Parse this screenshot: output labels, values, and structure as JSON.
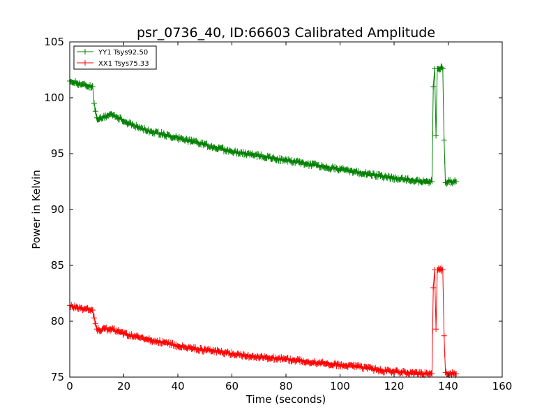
{
  "chart_data": {
    "type": "line",
    "title": "psr_0736_40, ID:66603 Calibrated Amplitude",
    "xlabel": "Time (seconds)",
    "ylabel": "Power in Kelvin",
    "xlim": [
      0,
      160
    ],
    "ylim": [
      75,
      105
    ],
    "xticks": [
      "0",
      "20",
      "40",
      "60",
      "80",
      "100",
      "120",
      "140",
      "160"
    ],
    "yticks": [
      "75",
      "80",
      "85",
      "90",
      "95",
      "100",
      "105"
    ],
    "grid": false,
    "legend_position": "top-left",
    "series": [
      {
        "name": "YY1 Tsys92.50",
        "color": "#008000",
        "x": [
          0,
          3,
          6,
          8.5,
          9,
          9.5,
          10,
          11,
          13,
          15,
          18,
          20,
          25,
          30,
          35,
          40,
          45,
          50,
          55,
          60,
          65,
          70,
          75,
          80,
          85,
          90,
          95,
          100,
          105,
          110,
          115,
          120,
          125,
          130,
          133,
          134,
          134.5,
          135,
          135.5,
          136,
          137,
          137.5,
          138,
          138.5,
          139,
          140,
          143
        ],
        "y": [
          101.5,
          101.3,
          101.1,
          101.0,
          99.5,
          98.8,
          98.2,
          98.1,
          98.3,
          98.5,
          98.2,
          97.9,
          97.4,
          97.0,
          96.7,
          96.4,
          96.1,
          95.8,
          95.5,
          95.2,
          95.0,
          94.8,
          94.6,
          94.4,
          94.2,
          94.0,
          93.8,
          93.6,
          93.4,
          93.2,
          93.0,
          92.8,
          92.7,
          92.5,
          92.5,
          92.5,
          101.0,
          102.6,
          96.6,
          102.6,
          102.6,
          102.7,
          102.6,
          96.2,
          92.4,
          92.5,
          92.5
        ]
      },
      {
        "name": "XX1 Tsys75.33",
        "color": "#ff0000",
        "x": [
          0,
          3,
          6,
          8.5,
          9,
          9.5,
          10,
          11,
          13,
          15,
          18,
          20,
          25,
          30,
          35,
          40,
          45,
          50,
          55,
          60,
          65,
          70,
          75,
          80,
          85,
          90,
          95,
          100,
          105,
          110,
          115,
          120,
          125,
          130,
          133,
          134,
          134.5,
          135,
          135.5,
          136,
          137,
          137.5,
          138,
          138.5,
          139,
          140,
          143
        ],
        "y": [
          81.4,
          81.2,
          81.1,
          81.0,
          80.3,
          79.8,
          79.3,
          79.2,
          79.3,
          79.3,
          79.1,
          78.9,
          78.6,
          78.3,
          78.1,
          77.8,
          77.6,
          77.4,
          77.3,
          77.1,
          76.9,
          76.8,
          76.7,
          76.6,
          76.5,
          76.3,
          76.2,
          76.1,
          76.0,
          75.8,
          75.6,
          75.5,
          75.4,
          75.3,
          75.3,
          75.3,
          83.0,
          84.6,
          79.3,
          84.6,
          84.6,
          84.6,
          84.6,
          78.7,
          75.4,
          75.3,
          75.3
        ]
      }
    ]
  }
}
